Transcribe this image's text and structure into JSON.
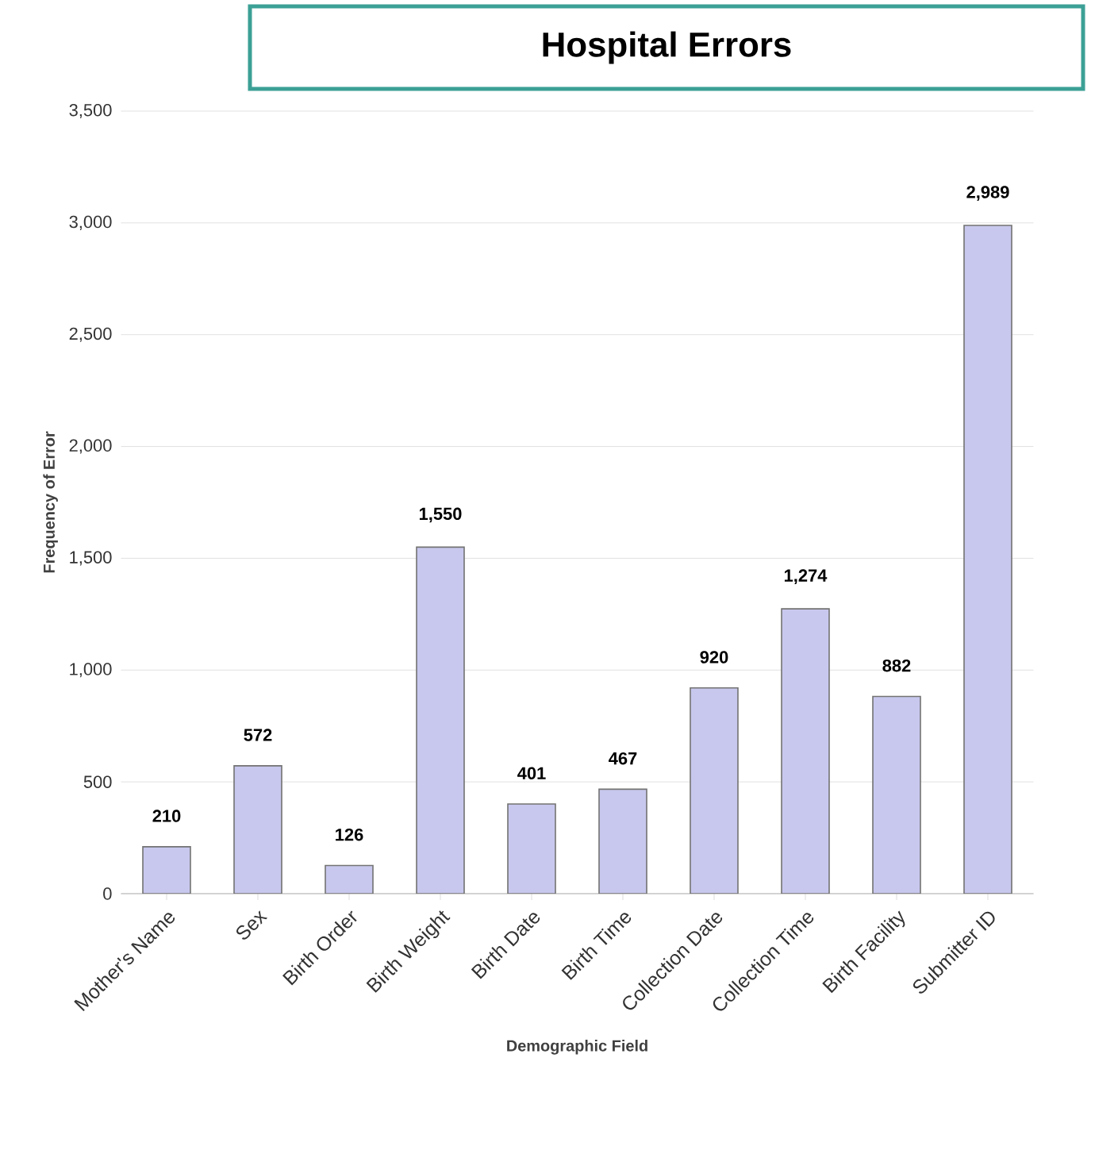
{
  "chart_data": {
    "type": "bar",
    "title": "Hospital Errors",
    "xlabel": "Demographic Field",
    "ylabel": "Frequency  of Error",
    "categories": [
      "Mother's Name",
      "Sex",
      "Birth Order",
      "Birth Weight",
      "Birth Date",
      "Birth Time",
      "Collection Date",
      "Collection Time",
      "Birth Facility",
      "Submitter ID"
    ],
    "values": [
      210,
      572,
      126,
      1550,
      401,
      467,
      920,
      1274,
      882,
      2989
    ],
    "value_labels": [
      "210",
      "572",
      "126",
      "1,550",
      "401",
      "467",
      "920",
      "1,274",
      "882",
      "2,989"
    ],
    "color": "#c8c8ee",
    "ylim": [
      0,
      3500
    ],
    "yticks": [
      0,
      500,
      {
        "value": 1000,
        "label": "1,000"
      },
      {
        "value": 1500,
        "label": "1,500"
      },
      {
        "value": 2000,
        "label": "2,000"
      },
      {
        "value": 2500,
        "label": "2,500"
      },
      {
        "value": 3000,
        "label": "3,000"
      },
      {
        "value": 3500,
        "label": "3,500"
      }
    ],
    "grid": "y"
  }
}
